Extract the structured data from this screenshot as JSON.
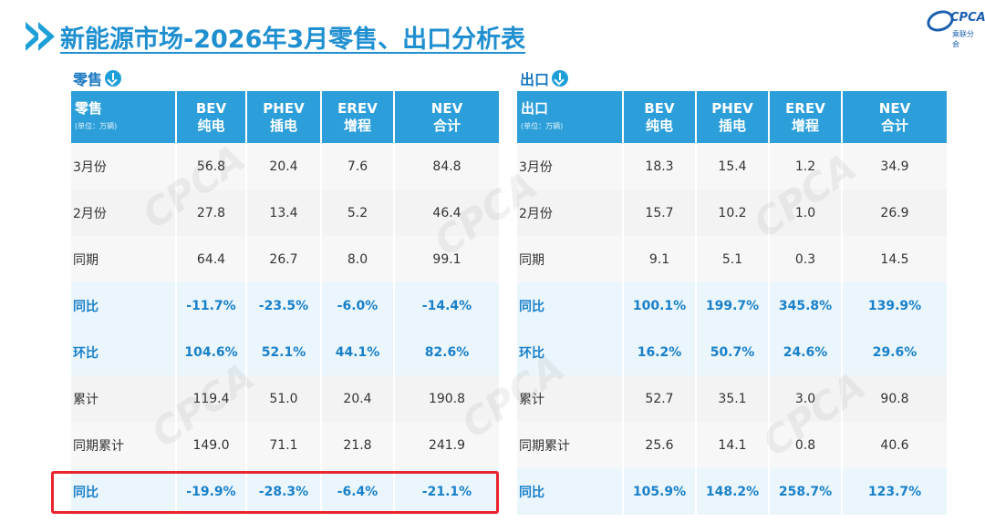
{
  "header": {
    "title": "新能源市场-2026年3月零售、出口分析表",
    "logo_text": "CPCA",
    "logo_sub": "乘联分会"
  },
  "retail": {
    "section_label": "零售",
    "corner_title": "零售",
    "corner_unit": "(单位：万辆)",
    "columns": [
      {
        "line1": "BEV",
        "line2": "纯电"
      },
      {
        "line1": "PHEV",
        "line2": "插电"
      },
      {
        "line1": "EREV",
        "line2": "增程"
      },
      {
        "line1": "NEV",
        "line2": "合计"
      }
    ],
    "rows": [
      {
        "label": "3月份",
        "values": [
          "56.8",
          "20.4",
          "7.6",
          "84.8"
        ],
        "highlight": false
      },
      {
        "label": "2月份",
        "values": [
          "27.8",
          "13.4",
          "5.2",
          "46.4"
        ],
        "highlight": false
      },
      {
        "label": "同期",
        "values": [
          "64.4",
          "26.7",
          "8.0",
          "99.1"
        ],
        "highlight": false
      },
      {
        "label": "同比",
        "values": [
          "-11.7%",
          "-23.5%",
          "-6.0%",
          "-14.4%"
        ],
        "highlight": true
      },
      {
        "label": "环比",
        "values": [
          "104.6%",
          "52.1%",
          "44.1%",
          "82.6%"
        ],
        "highlight": true
      },
      {
        "label": "累计",
        "values": [
          "119.4",
          "51.0",
          "20.4",
          "190.8"
        ],
        "highlight": false
      },
      {
        "label": "同期累计",
        "values": [
          "149.0",
          "71.1",
          "21.8",
          "241.9"
        ],
        "highlight": false
      },
      {
        "label": "同比",
        "values": [
          "-19.9%",
          "-28.3%",
          "-6.4%",
          "-21.1%"
        ],
        "highlight": true
      }
    ]
  },
  "export": {
    "section_label": "出口",
    "corner_title": "出口",
    "corner_unit": "(单位：万辆)",
    "columns": [
      {
        "line1": "BEV",
        "line2": "纯电"
      },
      {
        "line1": "PHEV",
        "line2": "插电"
      },
      {
        "line1": "EREV",
        "line2": "增程"
      },
      {
        "line1": "NEV",
        "line2": "合计"
      }
    ],
    "rows": [
      {
        "label": "3月份",
        "values": [
          "18.3",
          "15.4",
          "1.2",
          "34.9"
        ],
        "highlight": false
      },
      {
        "label": "2月份",
        "values": [
          "15.7",
          "10.2",
          "1.0",
          "26.9"
        ],
        "highlight": false
      },
      {
        "label": "同期",
        "values": [
          "9.1",
          "5.1",
          "0.3",
          "14.5"
        ],
        "highlight": false
      },
      {
        "label": "同比",
        "values": [
          "100.1%",
          "199.7%",
          "345.8%",
          "139.9%"
        ],
        "highlight": true
      },
      {
        "label": "环比",
        "values": [
          "16.2%",
          "50.7%",
          "24.6%",
          "29.6%"
        ],
        "highlight": true
      },
      {
        "label": "累计",
        "values": [
          "52.7",
          "35.1",
          "3.0",
          "90.8"
        ],
        "highlight": false
      },
      {
        "label": "同期累计",
        "values": [
          "25.6",
          "14.1",
          "0.8",
          "40.6"
        ],
        "highlight": false
      },
      {
        "label": "同比",
        "values": [
          "105.9%",
          "148.2%",
          "258.7%",
          "123.7%"
        ],
        "highlight": true
      }
    ]
  },
  "colors": {
    "header_blue": "#2c9fda",
    "title_blue": "#1f8fd0",
    "highlight_text": "#1a80c9",
    "highlight_bg": "#eaf6fc",
    "annotation_red": "#e9242c"
  },
  "annotation": {
    "target": "retail cumulative YoY row"
  }
}
